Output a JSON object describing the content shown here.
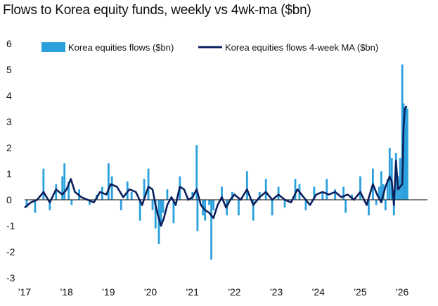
{
  "chart_data": {
    "type": "bar",
    "title": "Flows to Korea equity funds, weekly vs 4wk-ma ($bn)",
    "xlabel": "",
    "ylabel": "",
    "ylim": [
      -3,
      6
    ],
    "yticks": [
      6,
      5,
      4,
      3,
      2,
      1,
      0,
      -1,
      -2,
      -3
    ],
    "yticks_text": [
      "6",
      "5",
      "4",
      "3",
      "2",
      "1",
      "0",
      "-1",
      "-2",
      "-3"
    ],
    "xticks": [
      "'17",
      "'18",
      "'19",
      "'20",
      "'21",
      "'22",
      "'23",
      "'24",
      "'25",
      "'26"
    ],
    "x_range": [
      2017.0,
      2026.6
    ],
    "grid": false,
    "legend_position": "top",
    "colors": {
      "weekly": "#2aa0dd",
      "ma": "#0a1f5c"
    },
    "series": [
      {
        "name": "Korea equities flows ($bn)",
        "kind": "bar",
        "x": [
          2017.05,
          2017.25,
          2017.45,
          2017.6,
          2017.75,
          2017.9,
          2017.95,
          2018.05,
          2018.12,
          2018.3,
          2018.55,
          2018.72,
          2018.85,
          2019.0,
          2019.08,
          2019.3,
          2019.45,
          2019.55,
          2019.75,
          2019.85,
          2019.95,
          2020.05,
          2020.12,
          2020.2,
          2020.25,
          2020.3,
          2020.4,
          2020.55,
          2020.7,
          2020.85,
          2021.0,
          2021.1,
          2021.12,
          2021.25,
          2021.3,
          2021.4,
          2021.45,
          2021.5,
          2021.7,
          2021.82,
          2021.95,
          2022.1,
          2022.3,
          2022.45,
          2022.6,
          2022.75,
          2022.9,
          2023.05,
          2023.2,
          2023.45,
          2023.55,
          2023.7,
          2023.9,
          2024.1,
          2024.2,
          2024.4,
          2024.6,
          2024.65,
          2024.8,
          2025.0,
          2025.2,
          2025.3,
          2025.38,
          2025.45,
          2025.5,
          2025.55,
          2025.6,
          2025.65,
          2025.7,
          2025.75,
          2025.8,
          2025.85,
          2025.9,
          2025.95,
          2026.0,
          2026.03,
          2026.06,
          2026.09,
          2026.12
        ],
        "values": [
          -0.3,
          -0.5,
          1.2,
          -0.4,
          0.6,
          0.9,
          1.4,
          0.7,
          -0.2,
          0.4,
          -0.2,
          0.2,
          0.5,
          1.4,
          0.9,
          -0.4,
          0.7,
          0.3,
          -0.8,
          0.8,
          1.2,
          -0.4,
          -1.1,
          -1.7,
          -1.0,
          -0.5,
          0.4,
          -0.9,
          0.9,
          0.0,
          0.3,
          2.1,
          -1.2,
          -0.6,
          -0.8,
          -0.2,
          -2.3,
          -0.4,
          0.5,
          -0.6,
          0.3,
          -0.6,
          1.1,
          -0.8,
          0.3,
          0.8,
          -0.6,
          0.5,
          -0.3,
          0.8,
          0.6,
          -0.4,
          0.5,
          0.3,
          0.8,
          0.4,
          0.5,
          -0.5,
          0.2,
          0.9,
          -0.6,
          1.2,
          -0.2,
          0.5,
          1.1,
          0.6,
          -0.4,
          0.8,
          2.0,
          1.6,
          -0.6,
          1.8,
          0.9,
          1.6,
          5.2,
          3.7,
          3.4,
          3.6,
          3.5
        ]
      },
      {
        "name": "Korea equities flows 4-week MA ($bn)",
        "kind": "line",
        "x": [
          2017.0,
          2017.15,
          2017.3,
          2017.45,
          2017.6,
          2017.75,
          2017.9,
          2018.0,
          2018.1,
          2018.2,
          2018.35,
          2018.5,
          2018.65,
          2018.8,
          2018.95,
          2019.05,
          2019.2,
          2019.35,
          2019.5,
          2019.65,
          2019.8,
          2019.95,
          2020.05,
          2020.12,
          2020.18,
          2020.25,
          2020.32,
          2020.4,
          2020.5,
          2020.6,
          2020.7,
          2020.8,
          2020.9,
          2021.0,
          2021.1,
          2021.2,
          2021.3,
          2021.4,
          2021.5,
          2021.6,
          2021.7,
          2021.8,
          2021.9,
          2022.0,
          2022.15,
          2022.3,
          2022.45,
          2022.6,
          2022.75,
          2022.9,
          2023.05,
          2023.2,
          2023.35,
          2023.5,
          2023.65,
          2023.8,
          2023.95,
          2024.1,
          2024.25,
          2024.4,
          2024.55,
          2024.7,
          2024.85,
          2025.0,
          2025.15,
          2025.3,
          2025.4,
          2025.5,
          2025.6,
          2025.7,
          2025.75,
          2025.8,
          2025.85,
          2025.9,
          2025.95,
          2026.0,
          2026.03,
          2026.06,
          2026.1
        ],
        "values": [
          -0.3,
          -0.1,
          0.0,
          0.3,
          -0.1,
          0.4,
          0.2,
          0.4,
          0.8,
          0.3,
          0.1,
          0.0,
          -0.1,
          0.3,
          0.2,
          0.6,
          0.5,
          0.1,
          0.4,
          0.3,
          -0.2,
          0.5,
          0.4,
          -0.2,
          -0.6,
          -1.0,
          -0.7,
          -0.2,
          0.1,
          -0.2,
          0.5,
          0.4,
          0.0,
          0.1,
          0.4,
          -0.2,
          -0.4,
          -0.5,
          -0.7,
          -0.2,
          0.1,
          -0.3,
          0.0,
          0.2,
          0.0,
          0.4,
          -0.2,
          0.1,
          0.3,
          0.0,
          0.2,
          0.0,
          -0.1,
          0.4,
          0.1,
          -0.2,
          0.2,
          0.3,
          0.2,
          0.3,
          0.1,
          0.2,
          0.0,
          0.3,
          -0.2,
          0.6,
          0.2,
          -0.1,
          0.5,
          0.9,
          0.7,
          -0.2,
          1.5,
          0.4,
          0.5,
          0.6,
          2.8,
          3.5,
          3.6
        ]
      }
    ]
  }
}
